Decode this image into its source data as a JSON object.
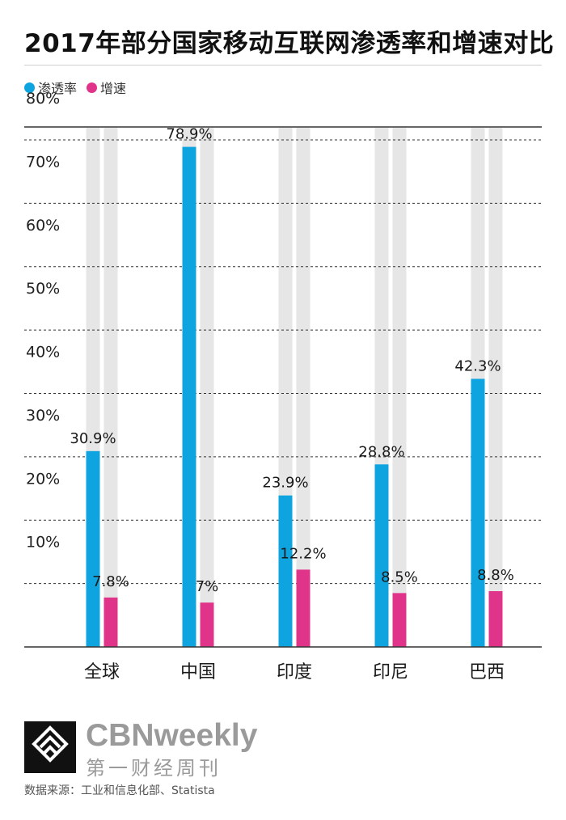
{
  "title": "2017年部分国家移动互联网渗透率和增速对比",
  "colors": {
    "penetration": "#0ea4e0",
    "growth": "#e0348a",
    "track": "#e6e6e6",
    "gridline": "#333333"
  },
  "chart_data": {
    "type": "bar",
    "title": "2017年部分国家移动互联网渗透率和增速对比",
    "categories": [
      "全球",
      "中国",
      "印度",
      "印尼",
      "巴西"
    ],
    "series": [
      {
        "name": "渗透率",
        "values": [
          30.9,
          78.9,
          23.9,
          28.8,
          42.3
        ],
        "labels": [
          "30.9%",
          "78.9%",
          "23.9%",
          "28.8%",
          "42.3%"
        ]
      },
      {
        "name": "增速",
        "values": [
          7.8,
          7,
          12.2,
          8.5,
          8.8
        ],
        "labels": [
          "7.8%",
          "7%",
          "12.2%",
          "8.5%",
          "8.8%"
        ]
      }
    ],
    "ylim": [
      0,
      80
    ],
    "yticks": [
      "10%",
      "20%",
      "30%",
      "40%",
      "50%",
      "60%",
      "70%",
      "80%"
    ],
    "grid": true,
    "legend_position": "top-left"
  },
  "footer": {
    "brand_en": "CBNweekly",
    "brand_cn": "第一财经周刊",
    "source": "数据来源：工业和信息化部、Statista"
  }
}
